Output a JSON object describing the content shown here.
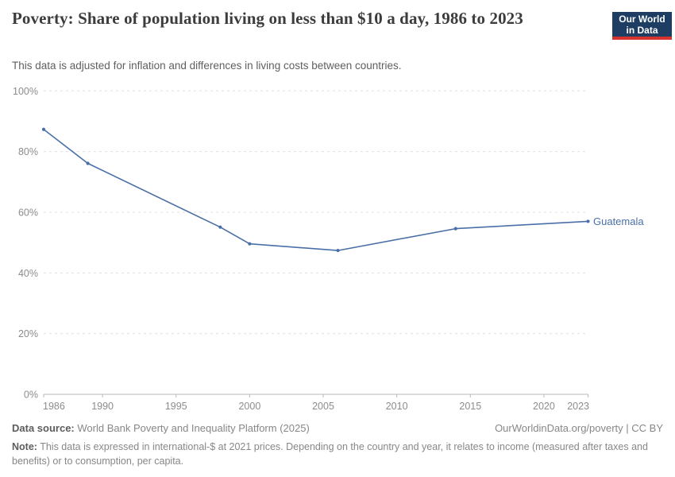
{
  "header": {
    "title": "Poverty: Share of population living on less than $10 a day, 1986 to 2023",
    "subtitle": "This data is adjusted for inflation and differences in living costs between countries.",
    "logo": {
      "line1": "Our World",
      "line2": "in Data",
      "bg_color": "#1d3d63",
      "bar_color": "#d6322e"
    }
  },
  "chart_data": {
    "type": "line",
    "title": "Poverty: Share of population living on less than $10 a day, 1986 to 2023",
    "subtitle": "This data is adjusted for inflation and differences in living costs between countries.",
    "x": [
      1986,
      1989,
      1998,
      2000,
      2006,
      2014,
      2023
    ],
    "series": [
      {
        "name": "Guatemala",
        "color": "#4a6fa8",
        "values": [
          87.3,
          76.1,
          55.1,
          49.6,
          47.4,
          54.6,
          57.0
        ]
      }
    ],
    "x_ticks": [
      1986,
      1990,
      1995,
      2000,
      2005,
      2010,
      2015,
      2020,
      2023
    ],
    "y_ticks": [
      0,
      20,
      40,
      60,
      80,
      100
    ],
    "y_tick_suffix": "%",
    "xlim": [
      1986,
      2023
    ],
    "ylim": [
      0,
      100
    ],
    "xlabel": "",
    "ylabel": "",
    "grid": "horizontal-dashed",
    "legend_position": "end-of-line-label"
  },
  "footer": {
    "datasource_label": "Data source:",
    "datasource_text": "World Bank Poverty and Inequality Platform (2025)",
    "rights": "OurWorldinData.org/poverty | CC BY",
    "note_label": "Note:",
    "note_text": "This data is expressed in international-$ at 2021 prices. Depending on the country and year, it relates to income (measured after taxes and benefits) or to consumption, per capita."
  }
}
